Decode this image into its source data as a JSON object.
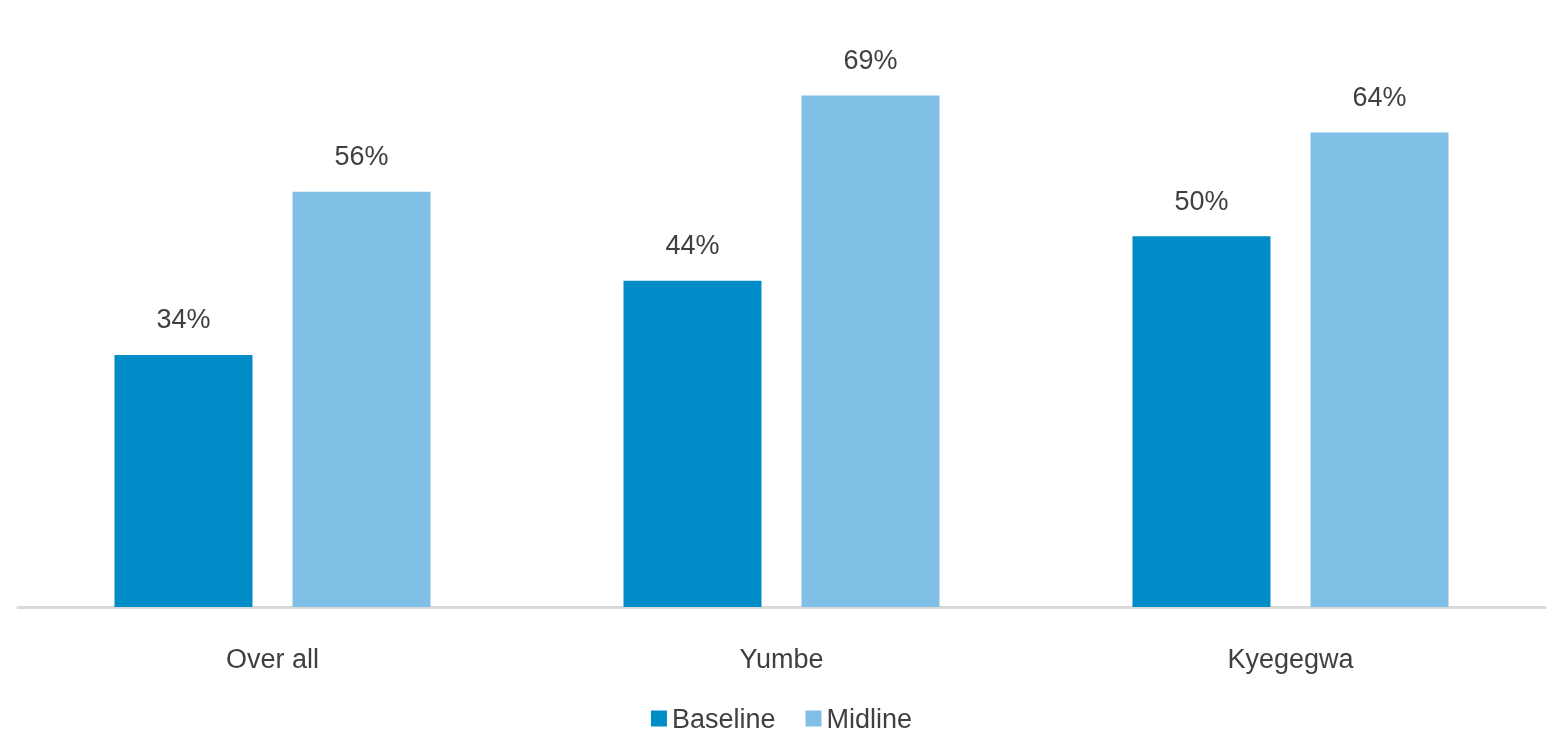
{
  "chart_data": {
    "type": "bar",
    "categories": [
      "Over all",
      "Yumbe",
      "Kyegegwa"
    ],
    "series": [
      {
        "name": "Baseline",
        "color": "#008cc6",
        "values": [
          34,
          44,
          50
        ],
        "value_labels": [
          "34%",
          "44%",
          "50%"
        ]
      },
      {
        "name": "Midline",
        "color": "#80bfe6",
        "values": [
          56,
          69,
          64
        ],
        "value_labels": [
          "56%",
          "69%",
          "64%"
        ]
      }
    ],
    "legend": "bottom"
  }
}
